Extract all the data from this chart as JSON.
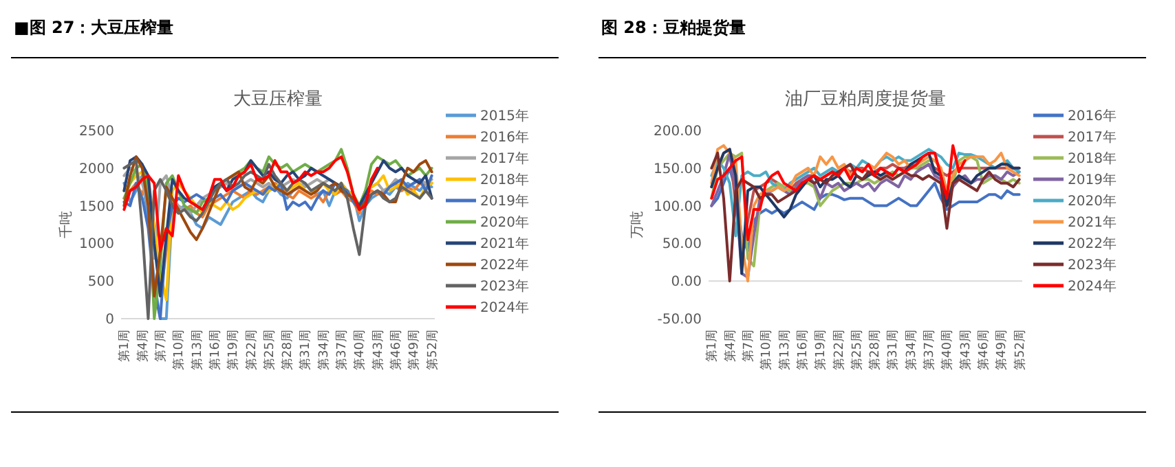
{
  "chart_data": [
    {
      "type": "line",
      "title": "■图 27：大豆压榨量",
      "subtitle": "大豆压榨量",
      "ylabel": "千吨",
      "legend": "right",
      "categories": [
        "第1周",
        null,
        null,
        "第4周",
        null,
        null,
        "第7周",
        null,
        null,
        "第10周",
        null,
        null,
        "第13周",
        null,
        null,
        "第16周",
        null,
        null,
        "第19周",
        null,
        null,
        "第22周",
        null,
        null,
        "第25周",
        null,
        null,
        "第28周",
        null,
        null,
        "第31周",
        null,
        null,
        "第34周",
        null,
        null,
        "第37周",
        null,
        null,
        "第40周",
        null,
        null,
        "第43周",
        null,
        null,
        "第46周",
        null,
        null,
        "第49周",
        null,
        null,
        "第52周"
      ],
      "ylim": [
        0,
        2500
      ],
      "yticks": [
        0,
        500,
        1000,
        1500,
        2000,
        2500
      ],
      "series": [
        {
          "name": "2015年",
          "color": "#5b9bd5",
          "values": [
            1800,
            1550,
            1700,
            1900,
            1300,
            500,
            0,
            0,
            1500,
            1450,
            1500,
            1400,
            1250,
            1200,
            1350,
            1300,
            1250,
            1400,
            1550,
            1600,
            1650,
            1700,
            1600,
            1550,
            1700,
            1750,
            1650,
            1600,
            1700,
            1750,
            1800,
            1700,
            1650,
            1700,
            1500,
            1700,
            1800,
            1700,
            1650,
            1300,
            1500,
            1600,
            1650,
            1700,
            1650,
            1750,
            1700,
            1800,
            1750,
            1700,
            1800,
            1750
          ]
        },
        {
          "name": "2016年",
          "color": "#ed7d31",
          "values": [
            1600,
            1700,
            1800,
            1650,
            1900,
            1200,
            300,
            900,
            1500,
            1400,
            1450,
            1500,
            1400,
            1350,
            1500,
            1550,
            1600,
            1650,
            1700,
            1650,
            1600,
            1700,
            1650,
            1700,
            1750,
            1800,
            1750,
            1650,
            1600,
            1700,
            1650,
            1600,
            1650,
            1550,
            1700,
            1650,
            1700,
            1600,
            1550,
            1400,
            1650,
            1700,
            1650,
            1700,
            1750,
            1800,
            1700,
            1750,
            1700,
            1800,
            1750,
            1800
          ]
        },
        {
          "name": "2017年",
          "color": "#a5a5a5",
          "values": [
            1900,
            2000,
            1950,
            1800,
            1500,
            800,
            1800,
            1900,
            1600,
            1500,
            1450,
            1400,
            1500,
            1600,
            1650,
            1700,
            1750,
            1800,
            1700,
            1750,
            1800,
            1850,
            1800,
            1750,
            1800,
            1700,
            1750,
            1800,
            1850,
            1800,
            1750,
            1800,
            1850,
            1800,
            1850,
            1800,
            1750,
            1700,
            1650,
            1500,
            1700,
            1750,
            1800,
            1700,
            1750,
            1850,
            1800,
            1750,
            1800,
            1850,
            1800,
            1850
          ]
        },
        {
          "name": "2018年",
          "color": "#ffc000",
          "values": [
            1700,
            1800,
            1900,
            1950,
            1800,
            1200,
            600,
            250,
            1700,
            1800,
            1700,
            1600,
            1500,
            1400,
            1550,
            1500,
            1450,
            1550,
            1450,
            1500,
            1600,
            1650,
            1700,
            1650,
            1700,
            1750,
            1800,
            1700,
            1750,
            1800,
            1700,
            1650,
            1750,
            1800,
            1700,
            1650,
            1800,
            1700,
            1650,
            1500,
            1700,
            1750,
            1800,
            1900,
            1700,
            1750,
            1800,
            1650,
            1700,
            1600,
            1750,
            1800
          ]
        },
        {
          "name": "2019年",
          "color": "#4472c4",
          "values": [
            1550,
            1500,
            1800,
            1600,
            1200,
            400,
            0,
            1100,
            1500,
            1600,
            1550,
            1600,
            1650,
            1600,
            1550,
            1600,
            1650,
            1550,
            1700,
            1750,
            1800,
            1750,
            1700,
            1650,
            1750,
            1700,
            1800,
            1450,
            1550,
            1500,
            1550,
            1450,
            1600,
            1700,
            1650,
            1800,
            1750,
            1700,
            1550,
            1450,
            1600,
            1650,
            1700,
            1650,
            1750,
            1800,
            1850,
            1750,
            1800,
            1850,
            1700,
            1900
          ]
        },
        {
          "name": "2020年",
          "color": "#70ad47",
          "values": [
            1600,
            1800,
            2000,
            2050,
            1700,
            0,
            700,
            1800,
            1900,
            1700,
            1500,
            1450,
            1400,
            1550,
            1600,
            1750,
            1800,
            1850,
            1900,
            1950,
            2000,
            2100,
            2000,
            1950,
            2150,
            2050,
            2000,
            2050,
            1950,
            2000,
            2050,
            2000,
            1950,
            2000,
            2050,
            2100,
            2250,
            2000,
            1650,
            1500,
            1700,
            2050,
            2150,
            2100,
            2050,
            2100,
            2000,
            1900,
            1950,
            2000,
            1900,
            2000
          ]
        },
        {
          "name": "2021年",
          "color": "#264478",
          "values": [
            1700,
            2100,
            2150,
            2050,
            1900,
            1000,
            300,
            1100,
            1850,
            1700,
            1600,
            1550,
            1500,
            1450,
            1600,
            1750,
            1800,
            1700,
            1850,
            1900,
            1950,
            2100,
            2000,
            1900,
            1950,
            1850,
            1800,
            1900,
            1950,
            1850,
            1900,
            2000,
            1950,
            1900,
            1850,
            1800,
            1750,
            1650,
            1600,
            1500,
            1650,
            1800,
            1950,
            2100,
            2000,
            1950,
            2000,
            1900,
            1850,
            1800,
            1900,
            1600
          ]
        },
        {
          "name": "2022年",
          "color": "#9e480e",
          "values": [
            1500,
            1900,
            2150,
            2000,
            1500,
            300,
            900,
            1750,
            1600,
            1450,
            1300,
            1150,
            1050,
            1200,
            1400,
            1600,
            1800,
            1850,
            1900,
            1950,
            1750,
            1700,
            1850,
            1800,
            1900,
            1750,
            1700,
            1650,
            1700,
            1750,
            1700,
            1650,
            1700,
            1800,
            1750,
            1800,
            1700,
            1650,
            1600,
            1450,
            1550,
            1650,
            1700,
            1650,
            1550,
            1550,
            1800,
            2000,
            1950,
            2050,
            2100,
            1950
          ]
        },
        {
          "name": "2023年",
          "color": "#636363",
          "values": [
            2000,
            2050,
            2100,
            1200,
            0,
            1700,
            1850,
            1700,
            1500,
            1400,
            1450,
            1350,
            1300,
            1400,
            1550,
            1700,
            1800,
            1850,
            1750,
            1800,
            1900,
            1950,
            1900,
            1850,
            2050,
            1900,
            1800,
            1700,
            1800,
            1850,
            1800,
            1700,
            1750,
            1800,
            1750,
            1700,
            1800,
            1600,
            1200,
            850,
            1500,
            1650,
            1700,
            1600,
            1550,
            1600,
            1750,
            1700,
            1650,
            1600,
            1700,
            1600
          ]
        },
        {
          "name": "2024年",
          "color": "#ff0000",
          "values": [
            1450,
            1700,
            1750,
            1850,
            1900,
            1800,
            900,
            1200,
            1100,
            1900,
            1700,
            1550,
            1500,
            1450,
            1600,
            1850,
            1850,
            1700,
            1750,
            1900,
            1950,
            2050,
            1850,
            1850,
            1900,
            2100,
            1950,
            1950,
            1800,
            1850,
            1950,
            1900,
            1950,
            1950,
            2000,
            2100,
            2150,
            1950,
            1650,
            1450,
            1500,
            1850,
            2000,
            null,
            null,
            null,
            null,
            null,
            null,
            null,
            null,
            null
          ]
        }
      ]
    },
    {
      "type": "line",
      "title": "图 28：豆粕提货量",
      "subtitle": "油厂豆粕周度提货量",
      "ylabel": "万吨",
      "legend": "right",
      "categories": [
        "第1周",
        null,
        null,
        "第4周",
        null,
        null,
        "第7周",
        null,
        null,
        "第10周",
        null,
        null,
        "第13周",
        null,
        null,
        "第16周",
        null,
        null,
        "第19周",
        null,
        null,
        "第22周",
        null,
        null,
        "第25周",
        null,
        null,
        "第28周",
        null,
        null,
        "第31周",
        null,
        null,
        "第34周",
        null,
        null,
        "第37周",
        null,
        null,
        "第40周",
        null,
        null,
        "第43周",
        null,
        null,
        "第46周",
        null,
        null,
        "第49周",
        null,
        null,
        "第52周"
      ],
      "ylim": [
        -50,
        200
      ],
      "yticks": [
        {
          "value": -50,
          "label": "-50.00"
        },
        {
          "value": 0,
          "label": "0.00"
        },
        {
          "value": 50,
          "label": "50.00"
        },
        {
          "value": 100,
          "label": "100.00"
        },
        {
          "value": 150,
          "label": "150.00"
        },
        {
          "value": 200,
          "label": "200.00"
        }
      ],
      "series": [
        {
          "name": "2016年",
          "color": "#4472c4",
          "values": [
            100,
            110,
            130,
            150,
            120,
            60,
            40,
            80,
            90,
            95,
            90,
            95,
            90,
            95,
            100,
            105,
            100,
            95,
            110,
            115,
            115,
            112,
            108,
            110,
            110,
            110,
            105,
            100,
            100,
            100,
            105,
            110,
            105,
            100,
            100,
            110,
            120,
            130,
            110,
            95,
            100,
            105,
            105,
            105,
            105,
            110,
            115,
            115,
            110,
            120,
            115,
            115
          ]
        },
        {
          "name": "2017年",
          "color": "#c0504d",
          "values": [
            125,
            150,
            170,
            175,
            100,
            30,
            80,
            120,
            125,
            130,
            135,
            130,
            125,
            120,
            130,
            135,
            140,
            140,
            135,
            140,
            145,
            145,
            150,
            145,
            150,
            150,
            145,
            145,
            150,
            150,
            155,
            150,
            150,
            155,
            150,
            150,
            155,
            150,
            145,
            140,
            145,
            150,
            150,
            150,
            150,
            150,
            150,
            150,
            150,
            150,
            150,
            150
          ]
        },
        {
          "name": "2018年",
          "color": "#9bbb59",
          "values": [
            110,
            150,
            160,
            170,
            165,
            170,
            30,
            20,
            100,
            120,
            125,
            130,
            125,
            120,
            125,
            130,
            130,
            125,
            100,
            110,
            120,
            125,
            130,
            130,
            130,
            135,
            135,
            130,
            135,
            140,
            145,
            140,
            145,
            150,
            150,
            155,
            160,
            160,
            150,
            110,
            130,
            160,
            165,
            165,
            160,
            130,
            135,
            140,
            135,
            130,
            135,
            130
          ]
        },
        {
          "name": "2019年",
          "color": "#8064a2",
          "values": [
            100,
            120,
            140,
            170,
            120,
            10,
            5,
            60,
            110,
            115,
            120,
            125,
            120,
            115,
            125,
            135,
            140,
            130,
            110,
            130,
            125,
            130,
            120,
            125,
            130,
            125,
            130,
            120,
            130,
            135,
            130,
            125,
            140,
            135,
            145,
            150,
            155,
            140,
            135,
            100,
            125,
            135,
            140,
            130,
            135,
            135,
            140,
            140,
            135,
            145,
            140,
            145
          ]
        },
        {
          "name": "2020年",
          "color": "#4bacc6",
          "values": [
            140,
            160,
            150,
            130,
            60,
            140,
            145,
            140,
            140,
            145,
            130,
            125,
            120,
            130,
            135,
            140,
            145,
            150,
            140,
            145,
            150,
            145,
            150,
            155,
            150,
            160,
            155,
            150,
            160,
            165,
            160,
            165,
            160,
            160,
            165,
            170,
            175,
            170,
            165,
            155,
            150,
            170,
            168,
            168,
            165,
            160,
            155,
            150,
            155,
            160,
            150,
            145
          ]
        },
        {
          "name": "2021年",
          "color": "#f79646",
          "values": [
            130,
            175,
            180,
            170,
            160,
            50,
            0,
            100,
            115,
            120,
            120,
            125,
            120,
            125,
            140,
            145,
            150,
            140,
            165,
            155,
            165,
            150,
            155,
            140,
            150,
            145,
            155,
            150,
            160,
            170,
            165,
            155,
            160,
            150,
            155,
            160,
            165,
            160,
            150,
            120,
            140,
            155,
            160,
            165,
            165,
            165,
            155,
            160,
            170,
            150,
            145,
            140
          ]
        },
        {
          "name": "2022年",
          "color": "#1f3864",
          "values": [
            125,
            150,
            170,
            175,
            140,
            10,
            120,
            125,
            125,
            115,
            105,
            95,
            85,
            95,
            115,
            125,
            135,
            140,
            125,
            135,
            135,
            140,
            130,
            125,
            140,
            135,
            140,
            145,
            140,
            145,
            140,
            150,
            145,
            155,
            160,
            165,
            170,
            145,
            140,
            100,
            130,
            140,
            135,
            130,
            140,
            145,
            150,
            150,
            155,
            155,
            150,
            150
          ]
        },
        {
          "name": "2023年",
          "color": "#7b2c2c",
          "values": [
            150,
            170,
            110,
            0,
            120,
            135,
            130,
            125,
            110,
            115,
            115,
            105,
            110,
            115,
            120,
            130,
            135,
            130,
            135,
            130,
            140,
            145,
            150,
            155,
            140,
            135,
            145,
            140,
            135,
            140,
            135,
            140,
            145,
            140,
            140,
            135,
            140,
            135,
            130,
            70,
            130,
            135,
            130,
            125,
            120,
            135,
            145,
            135,
            130,
            130,
            125,
            135
          ]
        },
        {
          "name": "2024年",
          "color": "#ff0000",
          "values": [
            110,
            135,
            140,
            150,
            160,
            165,
            55,
            95,
            95,
            130,
            140,
            145,
            130,
            125,
            120,
            130,
            135,
            140,
            135,
            140,
            145,
            140,
            150,
            135,
            150,
            145,
            155,
            140,
            150,
            145,
            140,
            150,
            145,
            150,
            155,
            165,
            170,
            170,
            140,
            110,
            180,
            145,
            160,
            null,
            null,
            null,
            null,
            null,
            null,
            null,
            null,
            null
          ]
        }
      ]
    }
  ]
}
